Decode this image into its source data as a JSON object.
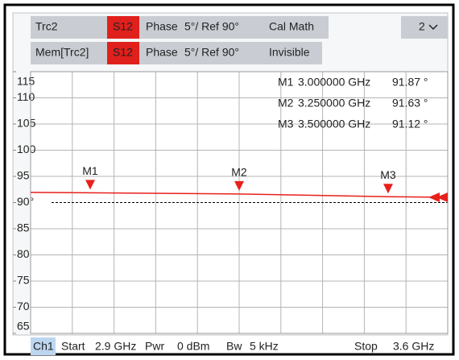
{
  "header": {
    "rows": [
      {
        "cells": [
          "Trc2",
          "S12",
          "Phase",
          "5°/ Ref 90°",
          "Cal Math"
        ],
        "channel": "2"
      },
      {
        "cells": [
          "Mem[Trc2]",
          "S12",
          "Phase",
          "5°/ Ref 90°",
          "Invisible"
        ]
      }
    ]
  },
  "footer": {
    "channel": "Ch1",
    "items": [
      "Start",
      "2.9 GHz",
      "Pwr",
      "0 dBm",
      "Bw",
      "5 kHz"
    ],
    "stop": [
      "Stop",
      "3.6 GHz"
    ]
  },
  "chart_data": {
    "type": "line",
    "x": [
      2.9,
      3.0,
      3.25,
      3.5,
      3.6
    ],
    "series": [
      {
        "name": "Trc2",
        "color": "#e8201c",
        "values": [
          91.95,
          91.87,
          91.63,
          91.12,
          91.0
        ]
      }
    ],
    "xlim": [
      2.9,
      3.6
    ],
    "xticks": [
      2.9,
      2.97,
      3.04,
      3.11,
      3.18,
      3.25,
      3.32,
      3.39,
      3.46,
      3.53,
      3.6
    ],
    "ylim": [
      65,
      115
    ],
    "yticks": [
      65,
      70,
      75,
      80,
      85,
      {
        "value": 90,
        "label": "90°"
      },
      95,
      100,
      105,
      110,
      115
    ],
    "reference": 90,
    "grid": true,
    "markers": [
      {
        "name": "M1",
        "x": 3.0,
        "x_label": "3.000000 GHz",
        "value": 91.87,
        "value_label": "91.87 °"
      },
      {
        "name": "M2",
        "x": 3.25,
        "x_label": "3.250000 GHz",
        "value": 91.63,
        "value_label": "91.63 °"
      },
      {
        "name": "M3",
        "x": 3.5,
        "x_label": "3.500000 GHz",
        "value": 91.12,
        "value_label": "91.12 °"
      }
    ]
  }
}
